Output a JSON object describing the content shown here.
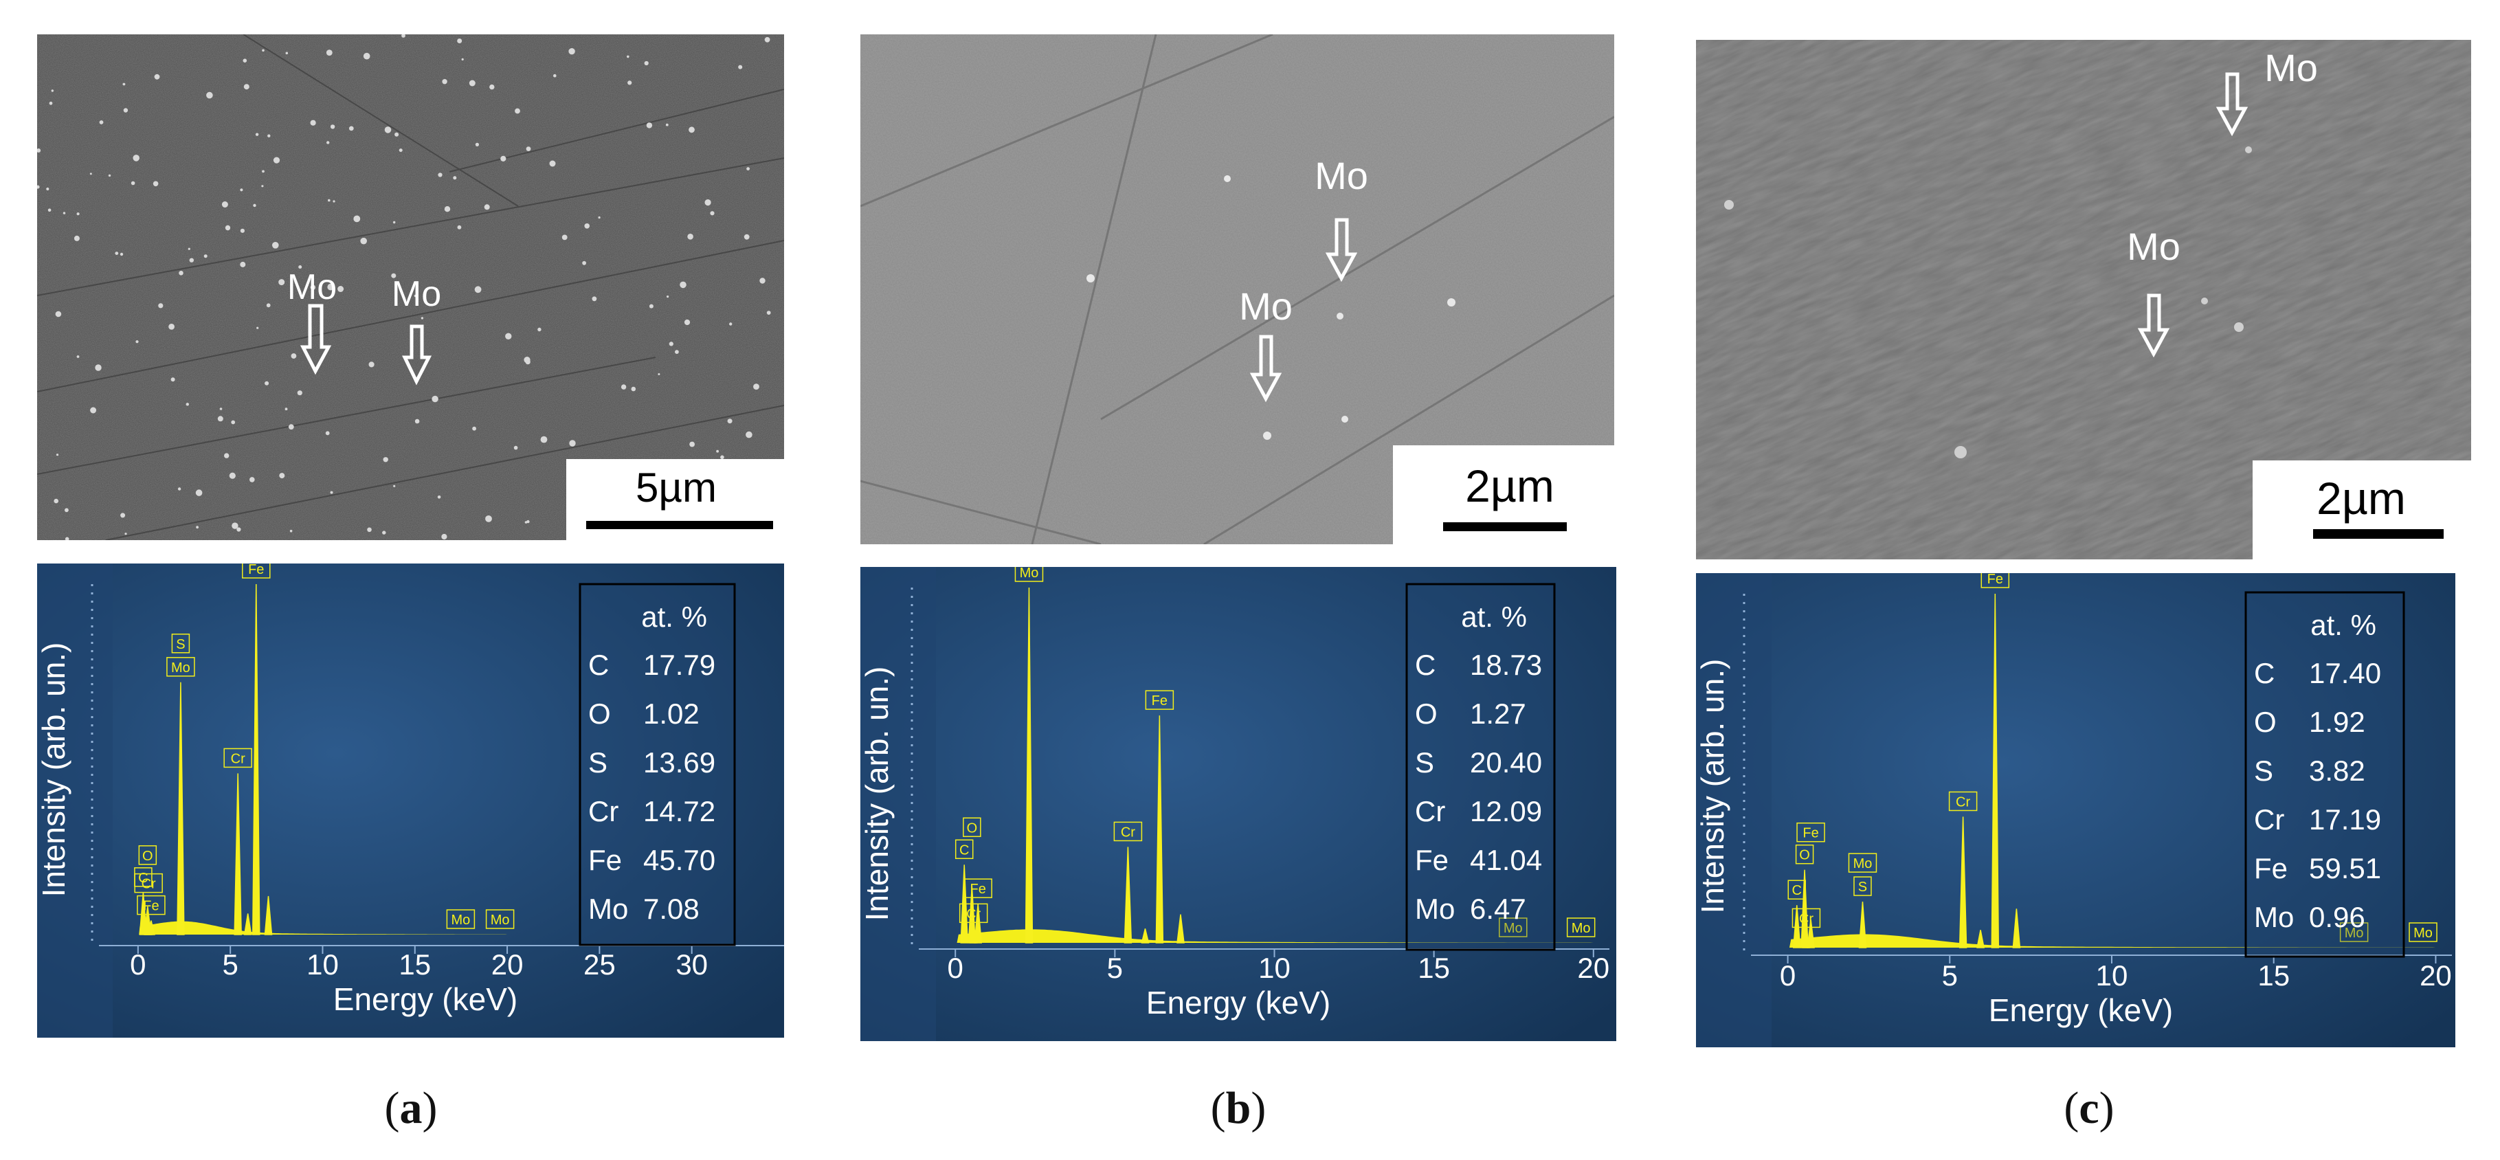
{
  "panels": [
    {
      "caption_letter": "a",
      "sem": {
        "scale_bar": "5µm",
        "arrow_labels": [
          "Mo",
          "Mo"
        ]
      },
      "eds": {
        "ylabel": "Intensity (arb. un.)",
        "xlabel": "Energy (keV)",
        "xticks": [
          "0",
          "5",
          "10",
          "15",
          "20",
          "25",
          "30"
        ],
        "table_header": "at. %",
        "composition": [
          {
            "element": "C",
            "value": "17.79"
          },
          {
            "element": "O",
            "value": "1.02"
          },
          {
            "element": "S",
            "value": "13.69"
          },
          {
            "element": "Cr",
            "value": "14.72"
          },
          {
            "element": "Fe",
            "value": "45.70"
          },
          {
            "element": "Mo",
            "value": "7.08"
          }
        ]
      }
    },
    {
      "caption_letter": "b",
      "sem": {
        "scale_bar": "2µm",
        "arrow_labels": [
          "Mo",
          "Mo"
        ]
      },
      "eds": {
        "ylabel": "Intensity (arb. un.)",
        "xlabel": "Energy (keV)",
        "xticks": [
          "0",
          "5",
          "10",
          "15",
          "20"
        ],
        "table_header": "at. %",
        "composition": [
          {
            "element": "C",
            "value": "18.73"
          },
          {
            "element": "O",
            "value": "1.27"
          },
          {
            "element": "S",
            "value": "20.40"
          },
          {
            "element": "Cr",
            "value": "12.09"
          },
          {
            "element": "Fe",
            "value": "41.04"
          },
          {
            "element": "Mo",
            "value": "6.47"
          }
        ]
      }
    },
    {
      "caption_letter": "c",
      "sem": {
        "scale_bar": "2µm",
        "arrow_labels": [
          "Mo",
          "Mo"
        ]
      },
      "eds": {
        "ylabel": "Intensity (arb. un.)",
        "xlabel": "Energy (keV)",
        "xticks": [
          "0",
          "5",
          "10",
          "15",
          "20"
        ],
        "table_header": "at. %",
        "composition": [
          {
            "element": "C",
            "value": "17.40"
          },
          {
            "element": "O",
            "value": "1.92"
          },
          {
            "element": "S",
            "value": "3.82"
          },
          {
            "element": "Cr",
            "value": "17.19"
          },
          {
            "element": "Fe",
            "value": "59.51"
          },
          {
            "element": "Mo",
            "value": "0.96"
          }
        ]
      }
    }
  ],
  "chart_data": [
    {
      "type": "line",
      "panel": "a",
      "xlabel": "Energy (keV)",
      "ylabel": "Intensity (arb. un.)",
      "xlim": [
        -1,
        35
      ],
      "ylim": [
        0,
        1
      ],
      "peaks": [
        {
          "x": 0.28,
          "y": 0.12,
          "label": "C"
        },
        {
          "x": 0.52,
          "y": 0.08,
          "label": "O"
        },
        {
          "x": 0.71,
          "y": 0.04,
          "label": "Fe"
        },
        {
          "x": 0.57,
          "y": 0.03,
          "label": "Cr"
        },
        {
          "x": 2.31,
          "y": 0.72,
          "label": "S Mo"
        },
        {
          "x": 5.41,
          "y": 0.46,
          "label": "Cr"
        },
        {
          "x": 5.95,
          "y": 0.06,
          "label": ""
        },
        {
          "x": 6.4,
          "y": 1.0,
          "label": "Fe"
        },
        {
          "x": 7.06,
          "y": 0.11,
          "label": ""
        },
        {
          "x": 17.48,
          "y": 0.0,
          "label": "Mo"
        },
        {
          "x": 19.61,
          "y": 0.0,
          "label": "Mo"
        }
      ],
      "composition_at_pct": {
        "C": 17.79,
        "O": 1.02,
        "S": 13.69,
        "Cr": 14.72,
        "Fe": 45.7,
        "Mo": 7.08
      }
    },
    {
      "type": "line",
      "panel": "b",
      "xlabel": "Energy (keV)",
      "ylabel": "Intensity (arb. un.)",
      "xlim": [
        -0.5,
        20.5
      ],
      "ylim": [
        0,
        1
      ],
      "peaks": [
        {
          "x": 0.28,
          "y": 0.22,
          "label": "C"
        },
        {
          "x": 0.52,
          "y": 0.16,
          "label": "O"
        },
        {
          "x": 0.71,
          "y": 0.11,
          "label": "Fe"
        },
        {
          "x": 0.57,
          "y": 0.04,
          "label": "Cr"
        },
        {
          "x": 2.31,
          "y": 1.0,
          "label": "S Mo"
        },
        {
          "x": 5.41,
          "y": 0.27,
          "label": "Cr"
        },
        {
          "x": 5.95,
          "y": 0.04,
          "label": ""
        },
        {
          "x": 6.4,
          "y": 0.64,
          "label": "Fe"
        },
        {
          "x": 7.06,
          "y": 0.08,
          "label": ""
        },
        {
          "x": 17.48,
          "y": 0.0,
          "label": "Mo"
        },
        {
          "x": 19.61,
          "y": 0.0,
          "label": "Mo"
        }
      ],
      "composition_at_pct": {
        "C": 18.73,
        "O": 1.27,
        "S": 20.4,
        "Cr": 12.09,
        "Fe": 41.04,
        "Mo": 6.47
      }
    },
    {
      "type": "line",
      "panel": "c",
      "xlabel": "Energy (keV)",
      "ylabel": "Intensity (arb. un.)",
      "xlim": [
        -0.5,
        20.5
      ],
      "ylim": [
        0,
        1
      ],
      "peaks": [
        {
          "x": 0.28,
          "y": 0.12,
          "label": "C"
        },
        {
          "x": 0.52,
          "y": 0.22,
          "label": "O"
        },
        {
          "x": 0.71,
          "y": 0.08,
          "label": "Fe"
        },
        {
          "x": 0.57,
          "y": 0.04,
          "label": "Cr"
        },
        {
          "x": 2.31,
          "y": 0.13,
          "label": "Mo S"
        },
        {
          "x": 5.41,
          "y": 0.37,
          "label": "Cr"
        },
        {
          "x": 5.95,
          "y": 0.05,
          "label": ""
        },
        {
          "x": 6.4,
          "y": 1.0,
          "label": "Fe"
        },
        {
          "x": 7.06,
          "y": 0.11,
          "label": ""
        },
        {
          "x": 17.48,
          "y": 0.0,
          "label": "Mo"
        },
        {
          "x": 19.61,
          "y": 0.0,
          "label": "Mo"
        }
      ],
      "composition_at_pct": {
        "C": 17.4,
        "O": 1.92,
        "S": 3.82,
        "Cr": 17.19,
        "Fe": 59.51,
        "Mo": 0.96
      }
    }
  ]
}
